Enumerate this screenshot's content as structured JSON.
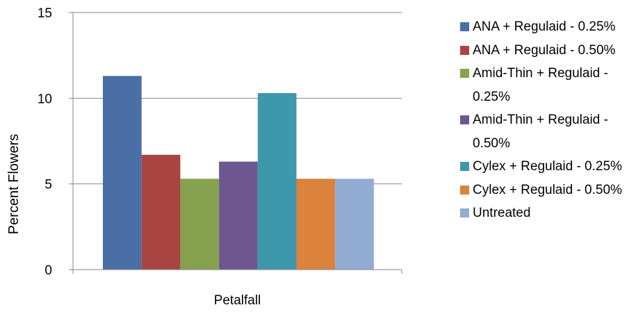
{
  "chart_data": {
    "type": "bar",
    "title": "",
    "xlabel": "",
    "ylabel": "Percent Flowers",
    "ylim": [
      0,
      15
    ],
    "yticks": [
      0,
      5,
      10,
      15
    ],
    "categories": [
      "Petalfall"
    ],
    "grid": "horizontal",
    "legend_position": "right",
    "series": [
      {
        "name": "ANA + Regulaid - 0.25%",
        "color": "#4A6FA5",
        "values": [
          11.3
        ]
      },
      {
        "name": "ANA + Regulaid - 0.50%",
        "color": "#A94442",
        "values": [
          6.7
        ]
      },
      {
        "name": "Amid-Thin + Regulaid - 0.25%",
        "color": "#87A24E",
        "values": [
          5.3
        ]
      },
      {
        "name": "Amid-Thin + Regulaid - 0.50%",
        "color": "#6E5790",
        "values": [
          6.3
        ]
      },
      {
        "name": "Cylex + Regulaid - 0.25%",
        "color": "#3E98AD",
        "values": [
          10.3
        ]
      },
      {
        "name": "Cylex + Regulaid - 0.50%",
        "color": "#DB823C",
        "values": [
          5.3
        ]
      },
      {
        "name": "Untreated",
        "color": "#93ACD3",
        "values": [
          5.3
        ]
      }
    ]
  }
}
